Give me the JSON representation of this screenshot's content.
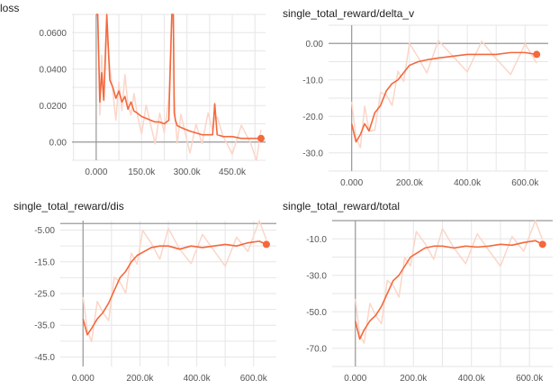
{
  "colors": {
    "line": "#f4683c",
    "raw": "#fbd6c8",
    "grid": "#e6e6e6",
    "axis": "#999999"
  },
  "chart_data": [
    {
      "type": "line",
      "title": "loss",
      "xlim": [
        -80000,
        560000
      ],
      "ylim": [
        -0.01,
        0.07
      ],
      "x_ticks": [
        0,
        150000,
        300000,
        450000
      ],
      "x_tick_labels": [
        "0.000",
        "150.0k",
        "300.0k",
        "450.0k"
      ],
      "y_ticks": [
        0,
        0.02,
        0.04,
        0.06
      ],
      "y_tick_labels": [
        "0.00",
        "0.0200",
        "0.0400",
        "0.0600"
      ],
      "grid": true,
      "series": [
        {
          "x": [
            0,
            5000,
            12000,
            18000,
            25000,
            35000,
            45000,
            55000,
            65000,
            75000,
            85000,
            95000,
            105000,
            115000,
            125000,
            135000,
            150000,
            165000,
            180000,
            195000,
            210000,
            225000,
            240000,
            250000,
            255000,
            258000,
            262000,
            268000,
            280000,
            295000,
            310000,
            330000,
            350000,
            370000,
            385000,
            392000,
            400000,
            420000,
            450000,
            480000,
            510000,
            530000,
            545000
          ],
          "y": [
            0.07,
            0.07,
            0.022,
            0.038,
            0.023,
            0.07,
            0.034,
            0.03,
            0.024,
            0.028,
            0.022,
            0.025,
            0.018,
            0.022,
            0.017,
            0.016,
            0.014,
            0.013,
            0.012,
            0.011,
            0.011,
            0.01,
            0.012,
            0.07,
            0.07,
            0.016,
            0.012,
            0.009,
            0.008,
            0.007,
            0.006,
            0.005,
            0.004,
            0.004,
            0.004,
            0.021,
            0.004,
            0.003,
            0.003,
            0.002,
            0.002,
            0.002,
            0.002
          ]
        }
      ]
    },
    {
      "type": "line",
      "title": "single_total_reward/delta_v",
      "xlim": [
        -80000,
        680000
      ],
      "ylim": [
        -35,
        5
      ],
      "x_ticks": [
        0,
        200000,
        400000,
        600000
      ],
      "x_tick_labels": [
        "0.000",
        "200.0k",
        "400.0k",
        "600.0k"
      ],
      "y_ticks": [
        0,
        -10,
        -20,
        -30
      ],
      "y_tick_labels": [
        "0.00",
        "-10.0",
        "-20.0",
        "-30.0"
      ],
      "grid": true,
      "series": [
        {
          "x": [
            0,
            15000,
            30000,
            45000,
            60000,
            80000,
            100000,
            120000,
            140000,
            160000,
            180000,
            200000,
            230000,
            260000,
            300000,
            350000,
            400000,
            450000,
            500000,
            550000,
            600000,
            640000
          ],
          "y": [
            -22,
            -27,
            -25,
            -22,
            -24,
            -19,
            -17,
            -13,
            -11,
            -10,
            -8,
            -6,
            -5,
            -4.5,
            -4,
            -3.5,
            -3,
            -3,
            -3,
            -2.5,
            -2.5,
            -3
          ]
        }
      ]
    },
    {
      "type": "line",
      "title": "single_total_reward/dis",
      "xlim": [
        -80000,
        680000
      ],
      "ylim": [
        -48,
        -2
      ],
      "x_ticks": [
        0,
        200000,
        400000,
        600000
      ],
      "x_tick_labels": [
        "0.000",
        "200.0k",
        "400.0k",
        "600.0k"
      ],
      "y_ticks": [
        -5,
        -15,
        -25,
        -35,
        -45
      ],
      "y_tick_labels": [
        "-5.00",
        "-15.0",
        "-25.0",
        "-35.0",
        "-45.0"
      ],
      "grid": true,
      "series": [
        {
          "x": [
            0,
            15000,
            30000,
            50000,
            70000,
            90000,
            110000,
            130000,
            150000,
            170000,
            190000,
            210000,
            240000,
            270000,
            300000,
            340000,
            380000,
            420000,
            460000,
            500000,
            540000,
            580000,
            620000,
            645000
          ],
          "y": [
            -33,
            -38,
            -36,
            -33,
            -31,
            -28,
            -24,
            -20,
            -18,
            -15,
            -13,
            -12,
            -10.5,
            -10,
            -10,
            -11,
            -10,
            -10.5,
            -10,
            -9.5,
            -10,
            -9,
            -8.5,
            -9.5
          ]
        }
      ]
    },
    {
      "type": "line",
      "title": "single_total_reward/total",
      "xlim": [
        -80000,
        680000
      ],
      "ylim": [
        -80,
        0
      ],
      "x_ticks": [
        0,
        200000,
        400000,
        600000
      ],
      "x_tick_labels": [
        "0.000",
        "200.0k",
        "400.0k",
        "600.0k"
      ],
      "y_ticks": [
        -10,
        -30,
        -50,
        -70
      ],
      "y_tick_labels": [
        "-10.0",
        "-30.0",
        "-50.0",
        "-70.0"
      ],
      "grid": true,
      "series": [
        {
          "x": [
            0,
            15000,
            30000,
            50000,
            70000,
            90000,
            110000,
            130000,
            150000,
            170000,
            190000,
            210000,
            240000,
            270000,
            300000,
            340000,
            380000,
            420000,
            460000,
            500000,
            540000,
            580000,
            620000,
            645000
          ],
          "y": [
            -55,
            -65,
            -60,
            -55,
            -52,
            -47,
            -40,
            -33,
            -30,
            -25,
            -20,
            -18,
            -15,
            -14,
            -14,
            -15,
            -14,
            -14.5,
            -14,
            -13,
            -13.5,
            -12,
            -11,
            -13
          ]
        }
      ]
    }
  ]
}
